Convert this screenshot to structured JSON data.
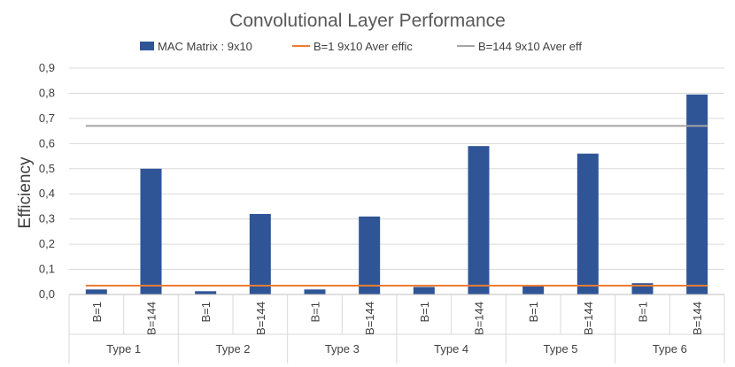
{
  "chart_data": {
    "type": "bar",
    "title": "Convolutional Layer Performance",
    "ylabel": "Efficiency",
    "ylim": [
      0,
      0.9
    ],
    "yticks": [
      "0,0",
      "0,1",
      "0,2",
      "0,3",
      "0,4",
      "0,5",
      "0,6",
      "0,7",
      "0,8",
      "0,9"
    ],
    "grid": true,
    "legend_position": "top",
    "groups": [
      {
        "label": "Type 1",
        "categories": [
          "B=1",
          "B=144"
        ]
      },
      {
        "label": "Type 2",
        "categories": [
          "B=1",
          "B=144"
        ]
      },
      {
        "label": "Type 3",
        "categories": [
          "B=1",
          "B=144"
        ]
      },
      {
        "label": "Type 4",
        "categories": [
          "B=1",
          "B=144"
        ]
      },
      {
        "label": "Type 5",
        "categories": [
          "B=1",
          "B=144"
        ]
      },
      {
        "label": "Type 6",
        "categories": [
          "B=1",
          "B=144"
        ]
      }
    ],
    "series": [
      {
        "name": "MAC Matrix : 9x10",
        "kind": "bar",
        "color": "#2f5597",
        "values": [
          0.02,
          0.5,
          0.013,
          0.32,
          0.02,
          0.31,
          0.03,
          0.59,
          0.035,
          0.56,
          0.045,
          0.795
        ]
      },
      {
        "name": "B=1  9x10 Aver effic",
        "kind": "line",
        "color": "#ed7d31",
        "value": 0.035
      },
      {
        "name": "B=144 9x10 Aver eff",
        "kind": "line",
        "color": "#a5a5a5",
        "value": 0.67
      }
    ]
  }
}
